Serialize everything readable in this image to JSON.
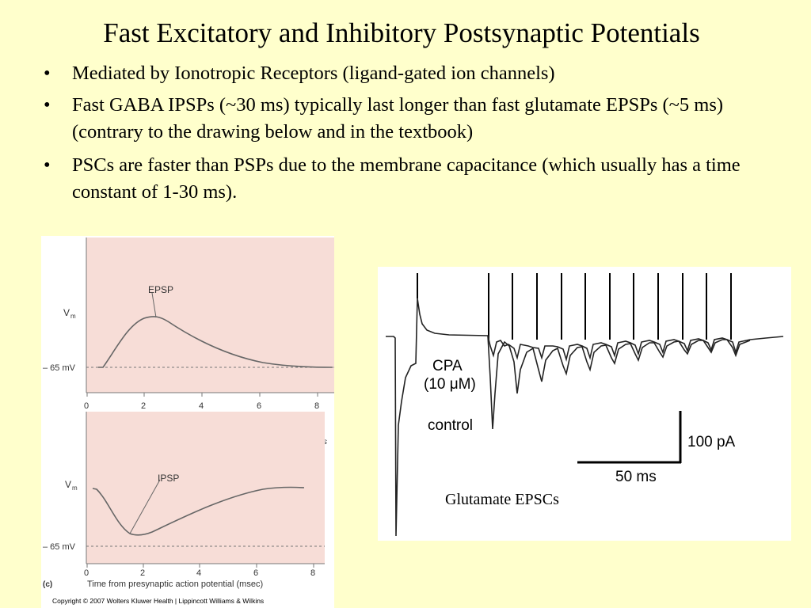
{
  "slide": {
    "title": "Fast Excitatory and Inhibitory Postsynaptic Potentials",
    "bullets": [
      "Mediated by Ionotropic Receptors (ligand-gated ion channels)",
      "Fast GABA IPSPs (~30 ms) typically last longer than fast glutamate EPSPs (~5 ms) (contrary to the drawing below and in the textbook)",
      "PSCs are faster than PSPs due to the membrane capacitance (which usually has a time constant of 1-30 ms)."
    ],
    "bullet_symbol": "•"
  },
  "figure_left": {
    "colors": {
      "plot_bg": "#f7ddd7",
      "curve": "#555555"
    },
    "epsp_panel": {
      "ylabel": "V",
      "ylabel_sub": "m",
      "baseline_label": "– 65 mV",
      "curve_label": "EPSP",
      "xticks": [
        "0",
        "2",
        "4",
        "6",
        "8"
      ],
      "clipped_axis_fragment": "s"
    },
    "ipsp_panel": {
      "ylabel": "V",
      "ylabel_sub": "m",
      "baseline_label": "– 65 mV",
      "curve_label": "IPSP",
      "xticks": [
        "0",
        "2",
        "4",
        "6",
        "8"
      ],
      "panel_letter": "(c)",
      "xlabel": "Time from presynaptic action potential (msec)"
    },
    "copyright": "Copyright © 2007 Wolters Kluwer Health | Lippincott Williams & Wilkins"
  },
  "figure_right": {
    "cpa_label": "CPA",
    "cpa_conc_label": "(10 μM)",
    "control_label": "control",
    "scale_y_label": "100 pA",
    "scale_x_label": "50 ms",
    "caption": "Glutamate EPSCs"
  }
}
